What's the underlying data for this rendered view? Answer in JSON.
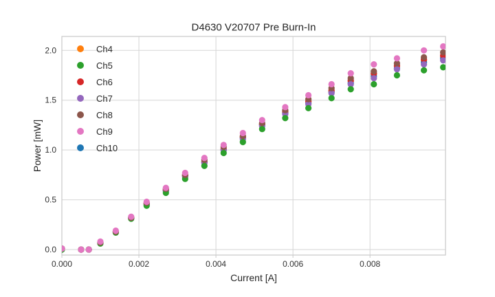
{
  "chart_data": {
    "type": "scatter",
    "title": "D4630 V20707 Pre Burn-In",
    "xlabel": "Current [A]",
    "ylabel": "Power [mW]",
    "xlim": [
      0.0,
      0.00996
    ],
    "ylim": [
      -0.055,
      2.14
    ],
    "grid": true,
    "legend_position": "upper left",
    "x_ticks": {
      "values": [
        0.0,
        0.002,
        0.004,
        0.006,
        0.008
      ],
      "labels": [
        "0.000",
        "0.002",
        "0.004",
        "0.006",
        "0.008"
      ]
    },
    "y_ticks": {
      "values": [
        0.0,
        0.5,
        1.0,
        1.5,
        2.0
      ],
      "labels": [
        "0.0",
        "0.5",
        "1.0",
        "1.5",
        "2.0"
      ]
    },
    "x": [
      0.0,
      0.0005,
      0.0007,
      0.001,
      0.0014,
      0.0018,
      0.0022,
      0.0027,
      0.0032,
      0.0037,
      0.0042,
      0.0047,
      0.0052,
      0.0058,
      0.0064,
      0.007,
      0.0075,
      0.0081,
      0.0087,
      0.0094,
      0.0099
    ],
    "series": [
      {
        "name": "Ch4",
        "color": "#ff7f0e",
        "values": [
          0.01,
          0.0,
          0.0,
          0.07,
          0.18,
          0.32,
          0.46,
          0.6,
          0.74,
          0.88,
          1.01,
          1.13,
          1.26,
          1.38,
          1.49,
          1.59,
          1.69,
          1.76,
          1.84,
          1.9,
          1.94
        ]
      },
      {
        "name": "Ch5",
        "color": "#2ca02c",
        "values": [
          0.0,
          0.0,
          0.0,
          0.06,
          0.17,
          0.31,
          0.44,
          0.57,
          0.71,
          0.84,
          0.97,
          1.08,
          1.21,
          1.32,
          1.42,
          1.52,
          1.61,
          1.66,
          1.75,
          1.8,
          1.83
        ]
      },
      {
        "name": "Ch6",
        "color": "#d62728",
        "values": [
          0.01,
          0.0,
          0.0,
          0.07,
          0.18,
          0.32,
          0.46,
          0.6,
          0.75,
          0.88,
          1.01,
          1.13,
          1.26,
          1.39,
          1.49,
          1.6,
          1.7,
          1.77,
          1.85,
          1.91,
          1.95
        ]
      },
      {
        "name": "Ch7",
        "color": "#9467bd",
        "values": [
          0.01,
          0.0,
          0.0,
          0.07,
          0.18,
          0.32,
          0.45,
          0.59,
          0.73,
          0.87,
          1.0,
          1.11,
          1.24,
          1.36,
          1.46,
          1.57,
          1.66,
          1.72,
          1.81,
          1.86,
          1.9
        ]
      },
      {
        "name": "Ch8",
        "color": "#8c564b",
        "values": [
          0.01,
          0.0,
          0.0,
          0.07,
          0.18,
          0.32,
          0.47,
          0.61,
          0.75,
          0.9,
          1.03,
          1.14,
          1.27,
          1.4,
          1.51,
          1.62,
          1.72,
          1.79,
          1.87,
          1.93,
          1.98
        ]
      },
      {
        "name": "Ch9",
        "color": "#e377c2",
        "values": [
          0.01,
          0.0,
          0.0,
          0.08,
          0.19,
          0.33,
          0.48,
          0.62,
          0.77,
          0.92,
          1.05,
          1.17,
          1.3,
          1.43,
          1.55,
          1.66,
          1.77,
          1.86,
          1.92,
          2.0,
          2.04
        ]
      },
      {
        "name": "Ch10",
        "color": "#1f77b4",
        "values": [
          0.01,
          0.0,
          0.0,
          0.07,
          0.18,
          0.32,
          0.46,
          0.59,
          0.74,
          0.88,
          1.0,
          1.12,
          1.25,
          1.37,
          1.47,
          1.58,
          1.67,
          1.74,
          1.82,
          1.88,
          1.92
        ]
      }
    ],
    "draw_order": [
      "Ch4",
      "Ch10",
      "Ch6",
      "Ch7",
      "Ch5",
      "Ch8",
      "Ch9"
    ],
    "marker": {
      "shape": "circle",
      "radius_px": 4.6
    },
    "colors": {
      "background": "#ffffff",
      "grid": "#d6d6d6",
      "spine": "#c9c9c9",
      "tick_label": "#303030",
      "text": "#262626"
    }
  }
}
